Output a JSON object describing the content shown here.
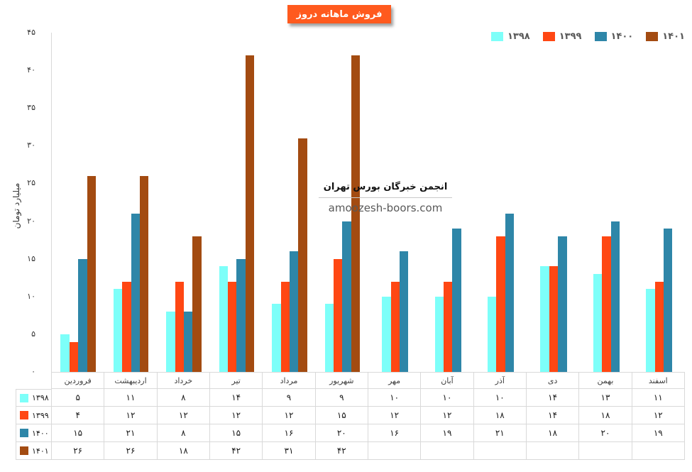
{
  "title": "فروش ماهانه دروز",
  "colors": {
    "title_bg": "#FF5A1E",
    "title_text": "#FFFFFF",
    "legend_text": "#595959",
    "table_border": "#D9D9D9"
  },
  "watermark": {
    "line1": "انجمن خبرگان بورس تهران",
    "line2": "amoozesh-boors.com"
  },
  "y_axis": {
    "title": "میلیارد تومان"
  },
  "chart_data": {
    "type": "bar",
    "title": "فروش ماهانه دروز",
    "xlabel": "",
    "ylabel": "میلیارد تومان",
    "ylim": [
      0,
      45
    ],
    "y_ticks": [
      45,
      40,
      35,
      30,
      25,
      20,
      15,
      10,
      5,
      0
    ],
    "grid": false,
    "legend_position": "top-right",
    "categories": [
      "فروردین",
      "اردیبهشت",
      "خرداد",
      "تیر",
      "مرداد",
      "شهریور",
      "مهر",
      "آبان",
      "آذر",
      "دی",
      "بهمن",
      "اسفند"
    ],
    "series": [
      {
        "id": "1398",
        "name": "۱۳۹۸",
        "color": "#7DFFF9",
        "values": [
          5,
          11,
          8,
          14,
          9,
          9,
          10,
          10,
          10,
          14,
          13,
          11
        ]
      },
      {
        "id": "1399",
        "name": "۱۳۹۹",
        "color": "#FF4713",
        "values": [
          4,
          12,
          12,
          12,
          12,
          15,
          12,
          12,
          18,
          14,
          18,
          12
        ]
      },
      {
        "id": "1400",
        "name": "۱۴۰۰",
        "color": "#2E86A8",
        "values": [
          15,
          21,
          8,
          15,
          16,
          20,
          16,
          19,
          21,
          18,
          20,
          19
        ]
      },
      {
        "id": "1401",
        "name": "۱۴۰۱",
        "color": "#A34B11",
        "values": [
          26,
          26,
          18,
          42,
          31,
          42,
          null,
          null,
          null,
          null,
          null,
          null
        ]
      }
    ]
  }
}
